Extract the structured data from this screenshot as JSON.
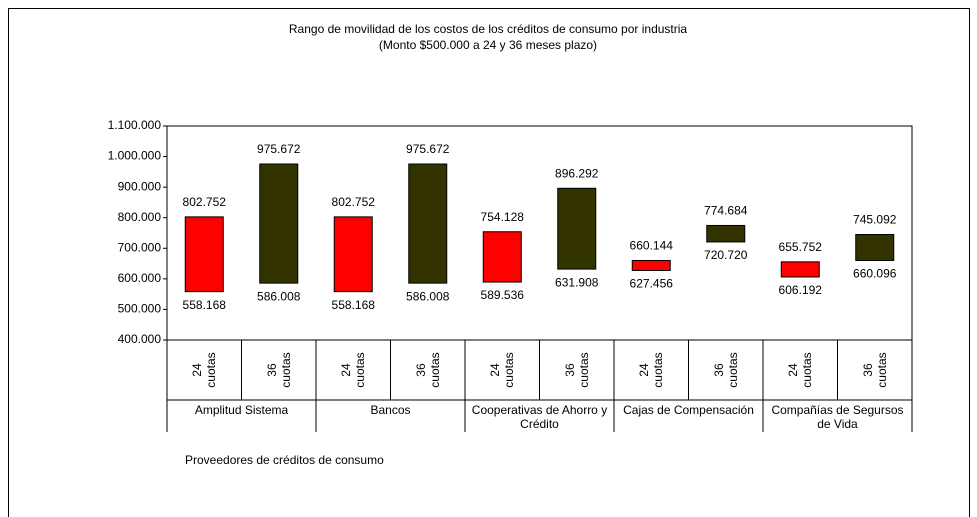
{
  "chart_data": {
    "type": "range_bar",
    "title": "Rango de movilidad de los costos de los créditos de consumo por industria",
    "subtitle": "(Monto $500.000 a 24 y 36 meses plazo)",
    "x_label": "Proveedores de créditos de consumo",
    "groups": [
      "Amplitud Sistema",
      "Bancos",
      "Cooperativas de Ahorro y Crédito",
      "Cajas de Compensación",
      "Compañías de Segursos de Vida"
    ],
    "categories": [
      "24 cuotas",
      "36 cuotas",
      "24 cuotas",
      "36 cuotas",
      "24 cuotas",
      "36 cuotas",
      "24 cuotas",
      "36 cuotas",
      "24 cuotas",
      "36 cuotas"
    ],
    "colors": [
      "#ff0000",
      "#333300",
      "#ff0000",
      "#333300",
      "#ff0000",
      "#333300",
      "#ff0000",
      "#333300",
      "#ff0000",
      "#333300"
    ],
    "high": {
      "values": [
        802752,
        975672,
        802752,
        975672,
        754128,
        896292,
        660144,
        774684,
        655752,
        745092
      ],
      "value_labels": [
        "802.752",
        "975.672",
        "802.752",
        "975.672",
        "754.128",
        "896.292",
        "660.144",
        "774.684",
        "655.752",
        "745.092"
      ]
    },
    "low": {
      "values": [
        558168,
        586008,
        558168,
        586008,
        589536,
        631908,
        627456,
        720720,
        606192,
        660096
      ],
      "value_labels": [
        "558.168",
        "586.008",
        "558.168",
        "586.008",
        "589.536",
        "631.908",
        "627.456",
        "720.720",
        "606.192",
        "660.096"
      ]
    },
    "ylim": [
      400000,
      1100000
    ],
    "yticks": [
      {
        "value": 400000,
        "label": "400.000"
      },
      {
        "value": 500000,
        "label": "500.000"
      },
      {
        "value": 600000,
        "label": "600.000"
      },
      {
        "value": 700000,
        "label": "700.000"
      },
      {
        "value": 800000,
        "label": "800.000"
      },
      {
        "value": 900000,
        "label": "900.000"
      },
      {
        "value": 1000000,
        "label": "1.000.000"
      },
      {
        "value": 1100000,
        "label": "1.100.000"
      }
    ]
  }
}
